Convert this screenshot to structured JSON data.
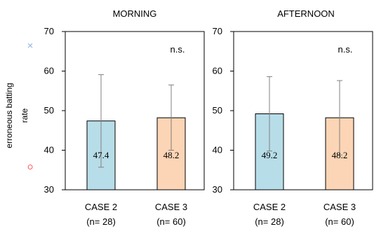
{
  "chart_data": {
    "type": "bar",
    "ylabel_lines": [
      "erroneous batting",
      "rate"
    ],
    "ylim": [
      30,
      70
    ],
    "yticks": [
      30,
      40,
      50,
      60,
      70
    ],
    "grid": false,
    "colors": {
      "case2": "#b7dde8",
      "case3": "#fbd5b5",
      "axis": "#000000",
      "error_bar": "#808080",
      "marker_x": "#8eb4e3",
      "marker_o": "#ff0000"
    },
    "panels": [
      {
        "title": "MORNING",
        "significance": "n.s.",
        "bars": [
          {
            "label": "CASE 2",
            "n_label": "(n= 28)",
            "value": 47.4,
            "value_label": "47.4",
            "err_low": 35.7,
            "err_high": 59.1,
            "color_key": "case2"
          },
          {
            "label": "CASE 3",
            "n_label": "(n= 60)",
            "value": 48.2,
            "value_label": "48.2",
            "err_low": 40.0,
            "err_high": 56.5,
            "color_key": "case3"
          }
        ]
      },
      {
        "title": "AFTERNOON",
        "significance": "n.s.",
        "bars": [
          {
            "label": "CASE 2",
            "n_label": "(n= 28)",
            "value": 49.2,
            "value_label": "49.2",
            "err_low": 39.8,
            "err_high": 58.6,
            "color_key": "case2"
          },
          {
            "label": "CASE 3",
            "n_label": "(n= 60)",
            "value": 48.2,
            "value_label": "48.2",
            "err_low": 38.8,
            "err_high": 57.6,
            "color_key": "case3"
          }
        ]
      }
    ],
    "legend_markers": [
      {
        "icon": "x-marker-icon",
        "glyph": "×",
        "color_key": "marker_x"
      },
      {
        "icon": "circle-marker-icon",
        "glyph": "○",
        "color_key": "marker_o"
      }
    ]
  }
}
